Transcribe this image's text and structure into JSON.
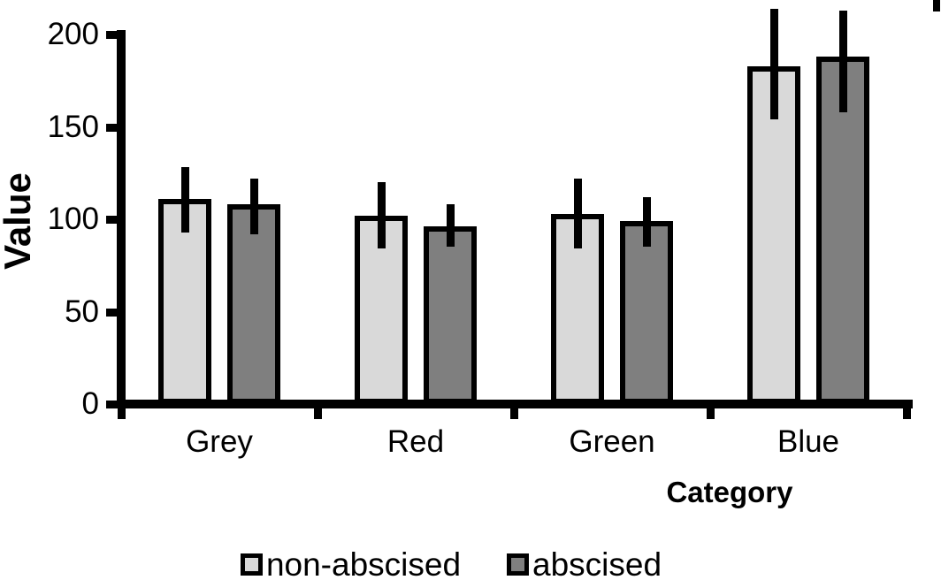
{
  "chart_data": {
    "type": "bar",
    "title": "",
    "xlabel": "Category",
    "ylabel": "Value",
    "ylim": [
      0,
      200
    ],
    "yticks": [
      0,
      50,
      100,
      150,
      200
    ],
    "grid": false,
    "legend_position": "bottom-center",
    "categories": [
      "Grey",
      "Red",
      "Green",
      "Blue"
    ],
    "series": [
      {
        "name": "non-abscised",
        "color": "#d9d9d9",
        "values": [
          111,
          102,
          103,
          183
        ],
        "error_low": [
          93,
          84,
          84,
          154
        ],
        "error_high": [
          128,
          120,
          122,
          214
        ]
      },
      {
        "name": "abscised",
        "color": "#7f7f7f",
        "values": [
          108,
          96,
          99,
          188
        ],
        "error_low": [
          92,
          85,
          85,
          158
        ],
        "error_high": [
          122,
          108,
          112,
          213
        ]
      }
    ],
    "bar_outline_color": "#000000",
    "error_bar_color": "#000000",
    "axis_color": "#000000",
    "text_color": "#000000"
  }
}
